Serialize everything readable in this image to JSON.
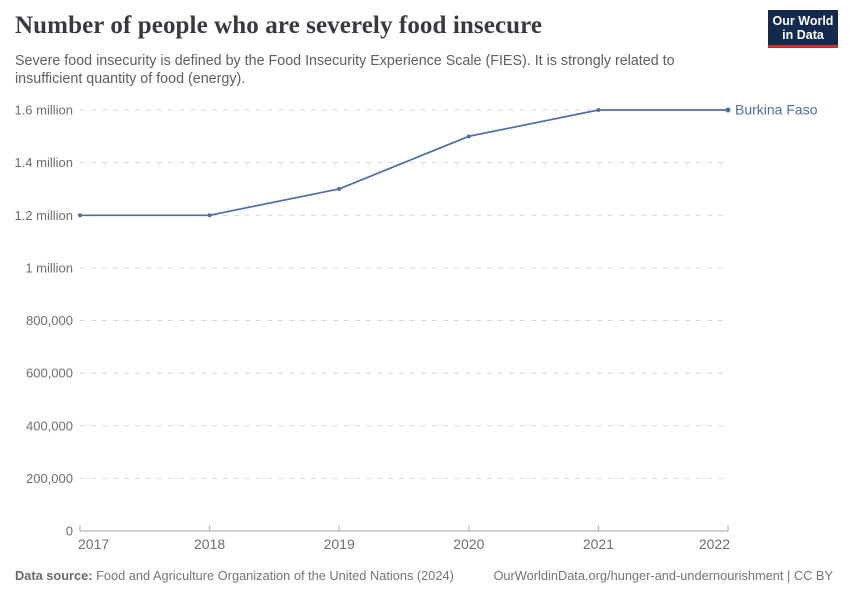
{
  "header": {
    "title": "Number of people who are severely food insecure",
    "subtitle": "Severe food insecurity is defined by the Food Insecurity Experience Scale (FIES). It is strongly related to insufficient quantity of food (energy)."
  },
  "logo": {
    "line1": "Our World",
    "line2": "in Data"
  },
  "chart_data": {
    "type": "line",
    "title": "Number of people who are severely food insecure",
    "x": [
      2017,
      2018,
      2019,
      2020,
      2021,
      2022
    ],
    "series": [
      {
        "name": "Burkina Faso",
        "values": [
          1200000,
          1200000,
          1300000,
          1500000,
          1600000,
          1600000
        ]
      }
    ],
    "xlim": [
      2017,
      2022
    ],
    "ylim": [
      0,
      1600000
    ],
    "xticks": [
      "2017",
      "2018",
      "2019",
      "2020",
      "2021",
      "2022"
    ],
    "yticks": [
      {
        "value": 0,
        "label": "0"
      },
      {
        "value": 200000,
        "label": "200,000"
      },
      {
        "value": 400000,
        "label": "400,000"
      },
      {
        "value": 600000,
        "label": "600,000"
      },
      {
        "value": 800000,
        "label": "800,000"
      },
      {
        "value": 1000000,
        "label": "1 million"
      },
      {
        "value": 1200000,
        "label": "1.2 million"
      },
      {
        "value": 1400000,
        "label": "1.4 million"
      },
      {
        "value": 1600000,
        "label": "1.6 million"
      }
    ],
    "grid": "horizontal dashed",
    "legend_position": "end-of-line label"
  },
  "footer": {
    "source_label": "Data source:",
    "source_text": " Food and Agriculture Organization of the United Nations (2024)",
    "link_text": "OurWorldinData.org/hunger-and-undernourishment | CC BY"
  },
  "colors": {
    "line": "#4c6fa5",
    "grid": "#d9d9d9",
    "axis": "#a5a5a5",
    "tick_label": "#6e6e6e",
    "title": "#383a42",
    "subtitle": "#5e5e5e",
    "footer": "#757575",
    "logo_bg": "#14294e",
    "logo_red": "#cf3225"
  }
}
